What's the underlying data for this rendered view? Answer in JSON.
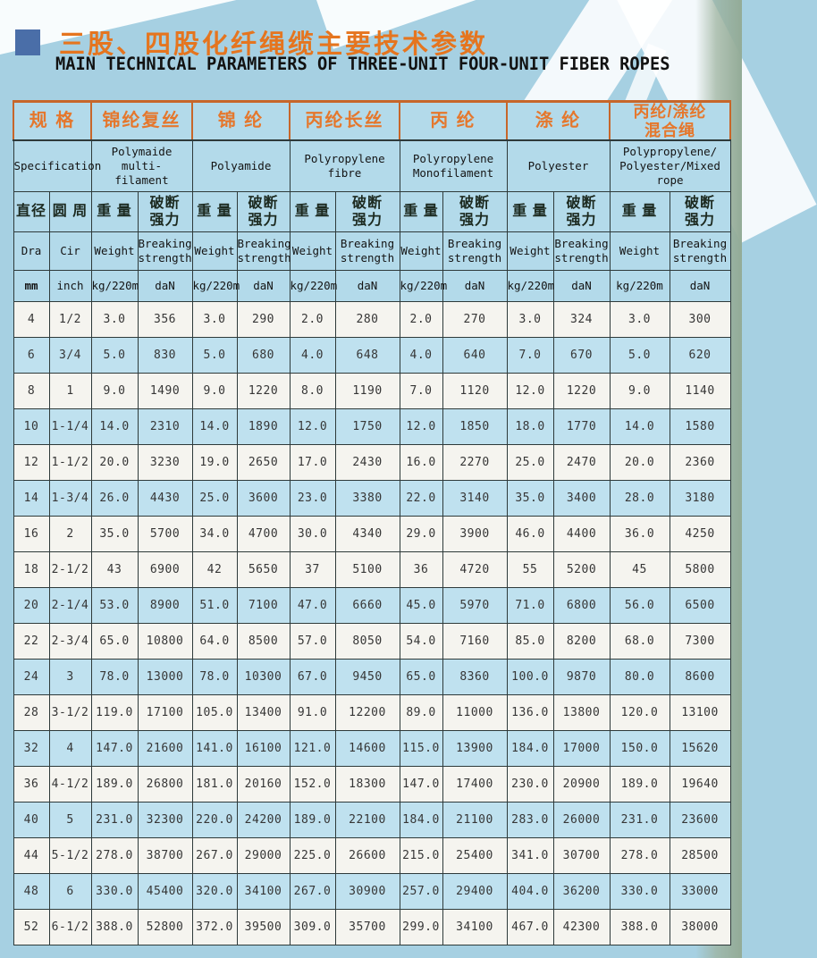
{
  "page": {
    "title_cn": "三股、四股化纤绳缆主要技术参数",
    "title_en": "MAIN TECHNICAL PARAMETERS OF THREE-UNIT FOUR-UNIT FIBER ROPES"
  },
  "colors": {
    "accent_orange": "#e5772c",
    "orange_border": "#c7662a",
    "header_cell_blue": "#b3daea",
    "shaded_row_blue": "#bfe1ef",
    "plain_row_white": "#f5f4ef",
    "title_bullet_blue": "#4a6ea8",
    "page_background_blue": "#a6d0e2",
    "edge_band_green": "#93ab97"
  },
  "table": {
    "spec": {
      "cn": "规 格",
      "en": "Specification"
    },
    "materials": [
      {
        "cn": "锦纶复丝",
        "en": "Polymaide multi-\nfilament"
      },
      {
        "cn": "锦 纶",
        "en": "Polyamide"
      },
      {
        "cn": "丙纶长丝",
        "en": "Polyropylene\nfibre"
      },
      {
        "cn": "丙 纶",
        "en": "Polyropylene\nMonofilament"
      },
      {
        "cn": "涤 纶",
        "en": "Polyester"
      },
      {
        "cn": "丙纶/涤纶\n混合绳",
        "en": "Polypropylene/\nPolyester/Mixed\nrope"
      }
    ],
    "sub": {
      "dia_cn": "直径",
      "cir_cn": "圆 周",
      "weight_cn": "重 量",
      "strength_cn": "破断\n强力",
      "dia_en": "Dra",
      "cir_en": "Cir",
      "weight_en": "Weight",
      "strength_en": "Breaking\nstrength",
      "dia_unit": "mm",
      "cir_unit": "inch",
      "weight_unit": "kg/220m",
      "strength_unit": "daN"
    },
    "rows": [
      {
        "dia": "4",
        "cir": "1/2",
        "shaded": false,
        "values": [
          "3.0",
          "356",
          "3.0",
          "290",
          "2.0",
          "280",
          "2.0",
          "270",
          "3.0",
          "324",
          "3.0",
          "300"
        ]
      },
      {
        "dia": "6",
        "cir": "3/4",
        "shaded": true,
        "values": [
          "5.0",
          "830",
          "5.0",
          "680",
          "4.0",
          "648",
          "4.0",
          "640",
          "7.0",
          "670",
          "5.0",
          "620"
        ]
      },
      {
        "dia": "8",
        "cir": "1",
        "shaded": false,
        "values": [
          "9.0",
          "1490",
          "9.0",
          "1220",
          "8.0",
          "1190",
          "7.0",
          "1120",
          "12.0",
          "1220",
          "9.0",
          "1140"
        ]
      },
      {
        "dia": "10",
        "cir": "1-1/4",
        "shaded": true,
        "values": [
          "14.0",
          "2310",
          "14.0",
          "1890",
          "12.0",
          "1750",
          "12.0",
          "1850",
          "18.0",
          "1770",
          "14.0",
          "1580"
        ]
      },
      {
        "dia": "12",
        "cir": "1-1/2",
        "shaded": false,
        "values": [
          "20.0",
          "3230",
          "19.0",
          "2650",
          "17.0",
          "2430",
          "16.0",
          "2270",
          "25.0",
          "2470",
          "20.0",
          "2360"
        ]
      },
      {
        "dia": "14",
        "cir": "1-3/4",
        "shaded": true,
        "values": [
          "26.0",
          "4430",
          "25.0",
          "3600",
          "23.0",
          "3380",
          "22.0",
          "3140",
          "35.0",
          "3400",
          "28.0",
          "3180"
        ]
      },
      {
        "dia": "16",
        "cir": "2",
        "shaded": false,
        "values": [
          "35.0",
          "5700",
          "34.0",
          "4700",
          "30.0",
          "4340",
          "29.0",
          "3900",
          "46.0",
          "4400",
          "36.0",
          "4250"
        ]
      },
      {
        "dia": "18",
        "cir": "2-1/2",
        "shaded": false,
        "values": [
          "43",
          "6900",
          "42",
          "5650",
          "37",
          "5100",
          "36",
          "4720",
          "55",
          "5200",
          "45",
          "5800"
        ]
      },
      {
        "dia": "20",
        "cir": "2-1/4",
        "shaded": true,
        "values": [
          "53.0",
          "8900",
          "51.0",
          "7100",
          "47.0",
          "6660",
          "45.0",
          "5970",
          "71.0",
          "6800",
          "56.0",
          "6500"
        ]
      },
      {
        "dia": "22",
        "cir": "2-3/4",
        "shaded": false,
        "values": [
          "65.0",
          "10800",
          "64.0",
          "8500",
          "57.0",
          "8050",
          "54.0",
          "7160",
          "85.0",
          "8200",
          "68.0",
          "7300"
        ]
      },
      {
        "dia": "24",
        "cir": "3",
        "shaded": true,
        "values": [
          "78.0",
          "13000",
          "78.0",
          "10300",
          "67.0",
          "9450",
          "65.0",
          "8360",
          "100.0",
          "9870",
          "80.0",
          "8600"
        ]
      },
      {
        "dia": "28",
        "cir": "3-1/2",
        "shaded": false,
        "values": [
          "119.0",
          "17100",
          "105.0",
          "13400",
          "91.0",
          "12200",
          "89.0",
          "11000",
          "136.0",
          "13800",
          "120.0",
          "13100"
        ]
      },
      {
        "dia": "32",
        "cir": "4",
        "shaded": true,
        "values": [
          "147.0",
          "21600",
          "141.0",
          "16100",
          "121.0",
          "14600",
          "115.0",
          "13900",
          "184.0",
          "17000",
          "150.0",
          "15620"
        ]
      },
      {
        "dia": "36",
        "cir": "4-1/2",
        "shaded": false,
        "values": [
          "189.0",
          "26800",
          "181.0",
          "20160",
          "152.0",
          "18300",
          "147.0",
          "17400",
          "230.0",
          "20900",
          "189.0",
          "19640"
        ]
      },
      {
        "dia": "40",
        "cir": "5",
        "shaded": true,
        "values": [
          "231.0",
          "32300",
          "220.0",
          "24200",
          "189.0",
          "22100",
          "184.0",
          "21100",
          "283.0",
          "26000",
          "231.0",
          "23600"
        ]
      },
      {
        "dia": "44",
        "cir": "5-1/2",
        "shaded": false,
        "values": [
          "278.0",
          "38700",
          "267.0",
          "29000",
          "225.0",
          "26600",
          "215.0",
          "25400",
          "341.0",
          "30700",
          "278.0",
          "28500"
        ]
      },
      {
        "dia": "48",
        "cir": "6",
        "shaded": true,
        "values": [
          "330.0",
          "45400",
          "320.0",
          "34100",
          "267.0",
          "30900",
          "257.0",
          "29400",
          "404.0",
          "36200",
          "330.0",
          "33000"
        ]
      },
      {
        "dia": "52",
        "cir": "6-1/2",
        "shaded": false,
        "values": [
          "388.0",
          "52800",
          "372.0",
          "39500",
          "309.0",
          "35700",
          "299.0",
          "34100",
          "467.0",
          "42300",
          "388.0",
          "38000"
        ]
      }
    ]
  }
}
